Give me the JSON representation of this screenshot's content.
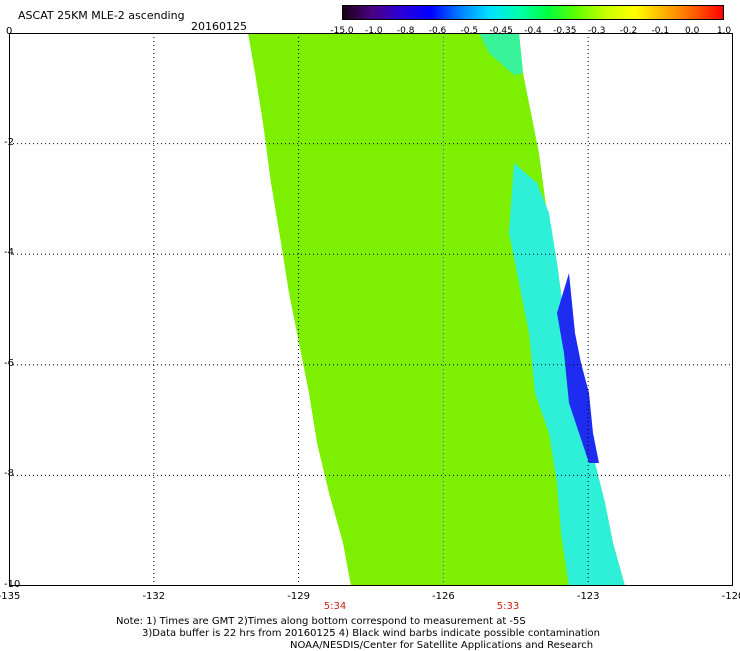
{
  "header": {
    "title": "ASCAT 25KM MLE-2 ascending",
    "date": "20160125"
  },
  "colorbar": {
    "labels": [
      "-15.0",
      "-1.0",
      "-0.8",
      "-0.6",
      "-0.5",
      "-0.45",
      "-0.4",
      "-0.35",
      "-0.3",
      "-0.2",
      "-0.1",
      "0.0",
      "1.0"
    ],
    "gradient_colors": [
      "#1a0016",
      "#4b0082",
      "#2a00d8",
      "#0000ff",
      "#007fff",
      "#00e0ff",
      "#00ffb0",
      "#00ff40",
      "#60ff00",
      "#c8ff00",
      "#ffff00",
      "#ffb000",
      "#ff6000",
      "#ff0000"
    ]
  },
  "map": {
    "x_ticks": [
      "-135",
      "-132",
      "-129",
      "-126",
      "-123",
      "-120"
    ],
    "y_ticks": [
      "0",
      "-2",
      "-4",
      "-6",
      "-8",
      "-10"
    ],
    "time_labels": [
      "5:34",
      "5:33"
    ],
    "swath_color": "#7cf000",
    "time_color": "#c8200e"
  },
  "notes": {
    "line1": "Note: 1) Times are GMT 2)Times along bottom correspond to measurement at -5S",
    "line2": "3)Data buffer is 22 hrs from 20160125 4) Black wind barbs indicate possible contamination",
    "line3": "NOAA/NESDIS/Center for Satellite Applications and Research"
  }
}
